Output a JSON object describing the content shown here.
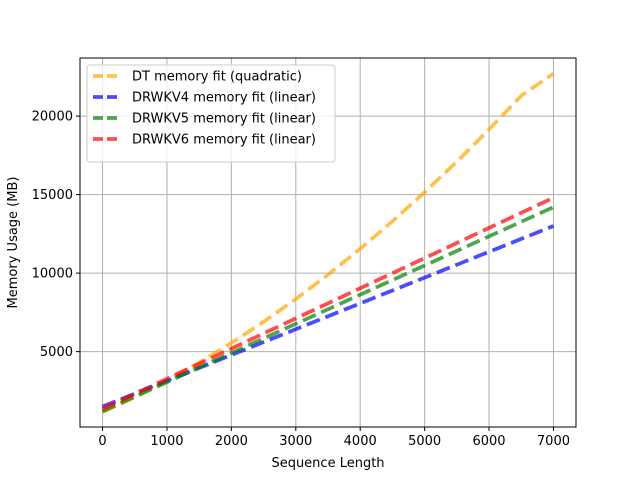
{
  "chart_data": {
    "type": "line",
    "title": "",
    "xlabel": "Sequence Length",
    "ylabel": "Memory Usage (MB)",
    "xlim": [
      -350,
      7350
    ],
    "ylim": [
      200,
      23700
    ],
    "xticks": [
      0,
      1000,
      2000,
      3000,
      4000,
      5000,
      6000,
      7000
    ],
    "yticks": [
      5000,
      10000,
      15000,
      20000
    ],
    "grid": true,
    "legend_position": "top-left",
    "series": [
      {
        "name": "DT memory fit (quadratic)",
        "color": "#ffa500",
        "opacity": 0.7,
        "x": [
          0,
          500,
          1000,
          1500,
          2000,
          2500,
          3000,
          3500,
          4000,
          4500,
          5000,
          5500,
          6000,
          6500,
          7000
        ],
        "values": [
          1150,
          2100,
          3150,
          4300,
          5550,
          6900,
          8350,
          9900,
          11550,
          13300,
          15150,
          17100,
          19150,
          21300,
          22700
        ]
      },
      {
        "name": "DRWKV4 memory fit (linear)",
        "color": "#0000ff",
        "opacity": 0.7,
        "x": [
          0,
          7000
        ],
        "values": [
          1500,
          13000
        ]
      },
      {
        "name": "DRWKV5 memory fit (linear)",
        "color": "#008000",
        "opacity": 0.7,
        "x": [
          0,
          7000
        ],
        "values": [
          1200,
          14200
        ]
      },
      {
        "name": "DRWKV6 memory fit (linear)",
        "color": "#ff0000",
        "opacity": 0.7,
        "x": [
          0,
          7000
        ],
        "values": [
          1350,
          14800
        ]
      }
    ]
  }
}
